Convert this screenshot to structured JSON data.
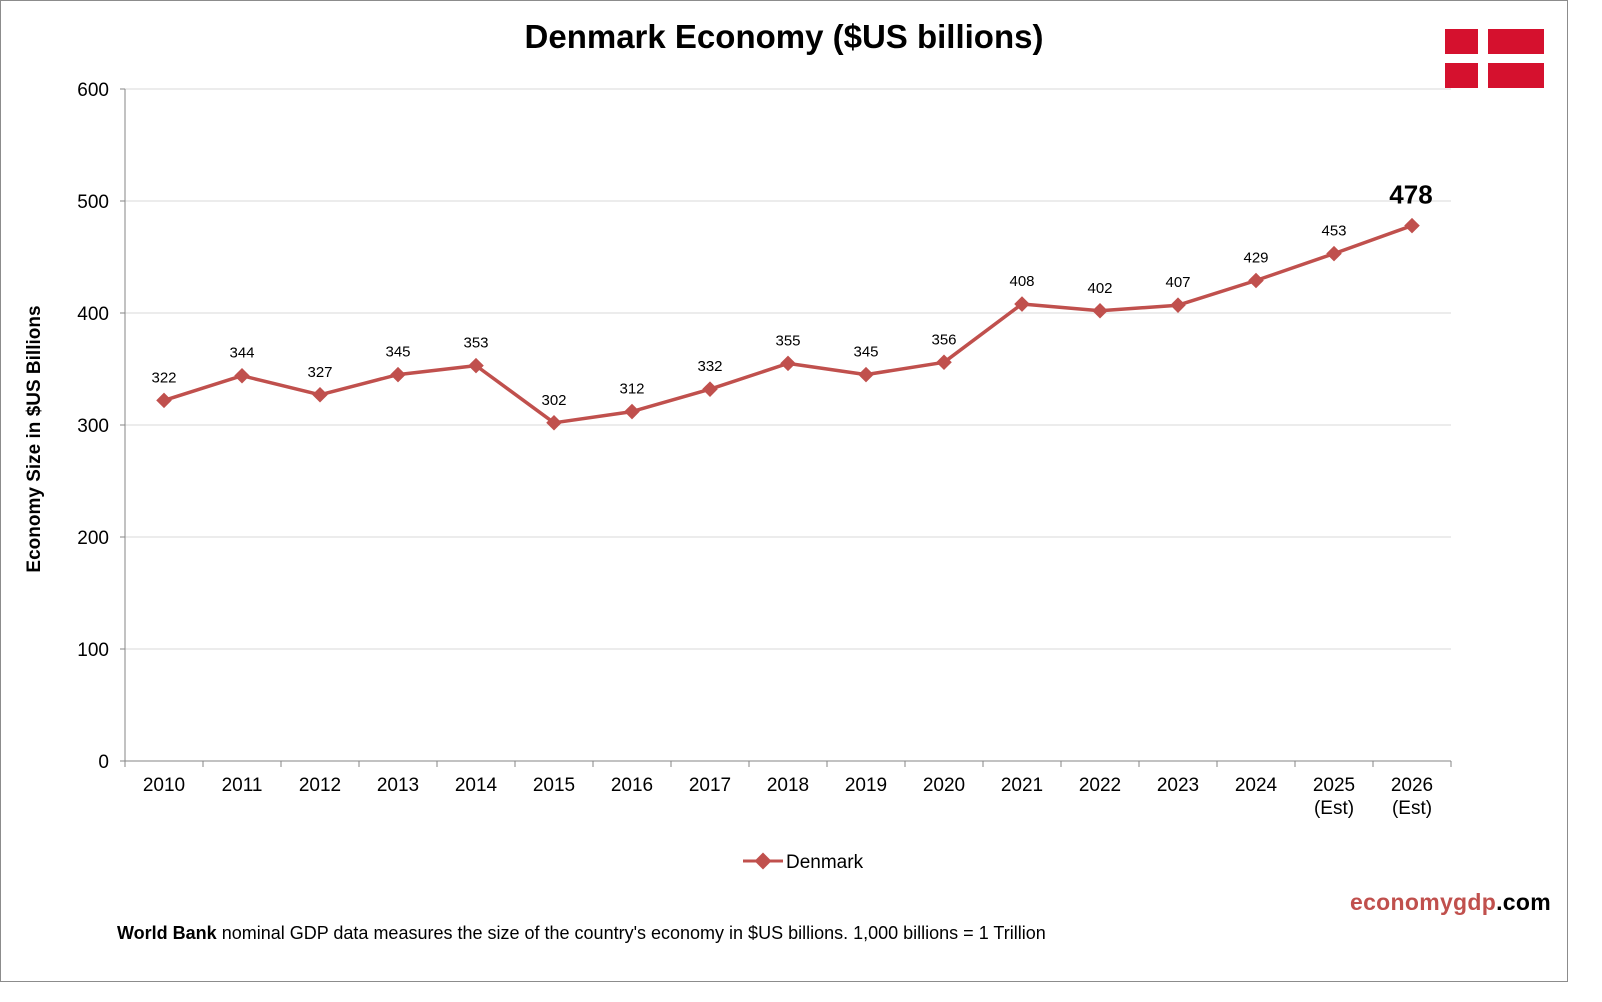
{
  "footer": {
    "brand_part1": "economygdp",
    "brand_part2": ".com",
    "note_source": "World Bank",
    "note_text": " nominal GDP data  measures the size of the country's economy in $US billions. 1,000 billions = 1 Trillion"
  },
  "flag": {
    "icon": "denmark-flag-icon",
    "field_color": "#d5112e",
    "cross_color": "#ffffff"
  },
  "chart_data": {
    "type": "line",
    "title": "Denmark Economy ($US billions)",
    "xlabel": "",
    "ylabel": "Economy Size in $US Billions",
    "categories": [
      "2010",
      "2011",
      "2012",
      "2013",
      "2014",
      "2015",
      "2016",
      "2017",
      "2018",
      "2019",
      "2020",
      "2021",
      "2022",
      "2023",
      "2024",
      "2025",
      "2026"
    ],
    "category_sublabels": [
      "",
      "",
      "",
      "",
      "",
      "",
      "",
      "",
      "",
      "",
      "",
      "",
      "",
      "",
      "",
      "(Est)",
      "(Est)"
    ],
    "series": [
      {
        "name": "Denmark",
        "color": "#c0504d",
        "marker": "diamond",
        "values": [
          322,
          344,
          327,
          345,
          353,
          302,
          312,
          332,
          355,
          345,
          356,
          408,
          402,
          407,
          429,
          453,
          478
        ]
      }
    ],
    "ylim": [
      0,
      600
    ],
    "yticks": [
      0,
      100,
      200,
      300,
      400,
      500,
      600
    ],
    "grid": true,
    "grid_color": "#d9d9d9",
    "legend_position": "bottom",
    "highlight_last_label": true
  }
}
